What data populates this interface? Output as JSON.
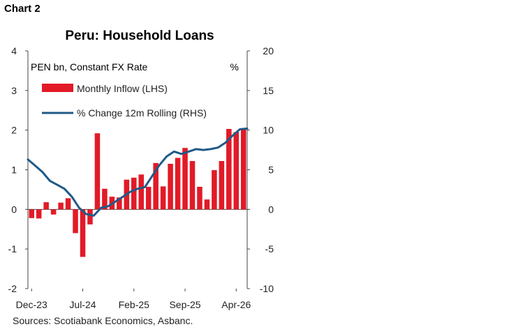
{
  "chart_number": "Chart 2",
  "source_note": "Sources: Scotiabank Economics, Asbanc.",
  "colors": {
    "bar": "#e21a27",
    "line": "#1f5a87",
    "axis": "#444444",
    "text": "#000000"
  },
  "chart_data": {
    "type": "bar+line",
    "title": "Peru: Household Loans",
    "left_axis_note": "PEN bn, Constant FX Rate",
    "right_axis_note": "%",
    "ylim_left": [
      -2,
      4
    ],
    "ylim_right": [
      -10,
      20
    ],
    "left_ticks": [
      "-2",
      "-1",
      "0",
      "1",
      "2",
      "3",
      "4"
    ],
    "right_ticks": [
      "-10",
      "-5",
      "0",
      "5",
      "10",
      "15",
      "20"
    ],
    "x_tick_labels": [
      {
        "label": "Dec-23",
        "index": 0
      },
      {
        "label": "Jul-24",
        "index": 7
      },
      {
        "label": "Feb-25",
        "index": 14
      },
      {
        "label": "Sep-25",
        "index": 21
      },
      {
        "label": "Apr-26",
        "index": 28
      }
    ],
    "grid": false,
    "legend_position": "top-left",
    "series": [
      {
        "name": "Monthly Inflow (LHS)",
        "type": "bar",
        "axis": "left",
        "values": [
          -0.22,
          -0.23,
          0.18,
          -0.13,
          0.17,
          0.28,
          -0.6,
          -1.2,
          -0.38,
          1.92,
          0.52,
          0.32,
          0.3,
          0.75,
          0.8,
          0.88,
          0.57,
          1.17,
          0.58,
          1.15,
          1.3,
          1.55,
          1.22,
          0.57,
          0.25,
          0.99,
          1.22,
          2.03,
          1.95,
          2.05
        ]
      },
      {
        "name": "% Change 12m Rolling (RHS)",
        "type": "line",
        "axis": "right",
        "values": [
          6.3,
          5.5,
          4.7,
          3.6,
          3.1,
          2.6,
          1.6,
          0.2,
          -0.6,
          -0.8,
          0.2,
          0.4,
          1.0,
          1.6,
          2.2,
          2.6,
          2.8,
          4.2,
          5.6,
          6.7,
          7.3,
          7.0,
          7.3,
          7.6,
          7.5,
          7.6,
          7.8,
          8.4,
          9.3,
          10.1,
          10.2
        ]
      }
    ]
  }
}
